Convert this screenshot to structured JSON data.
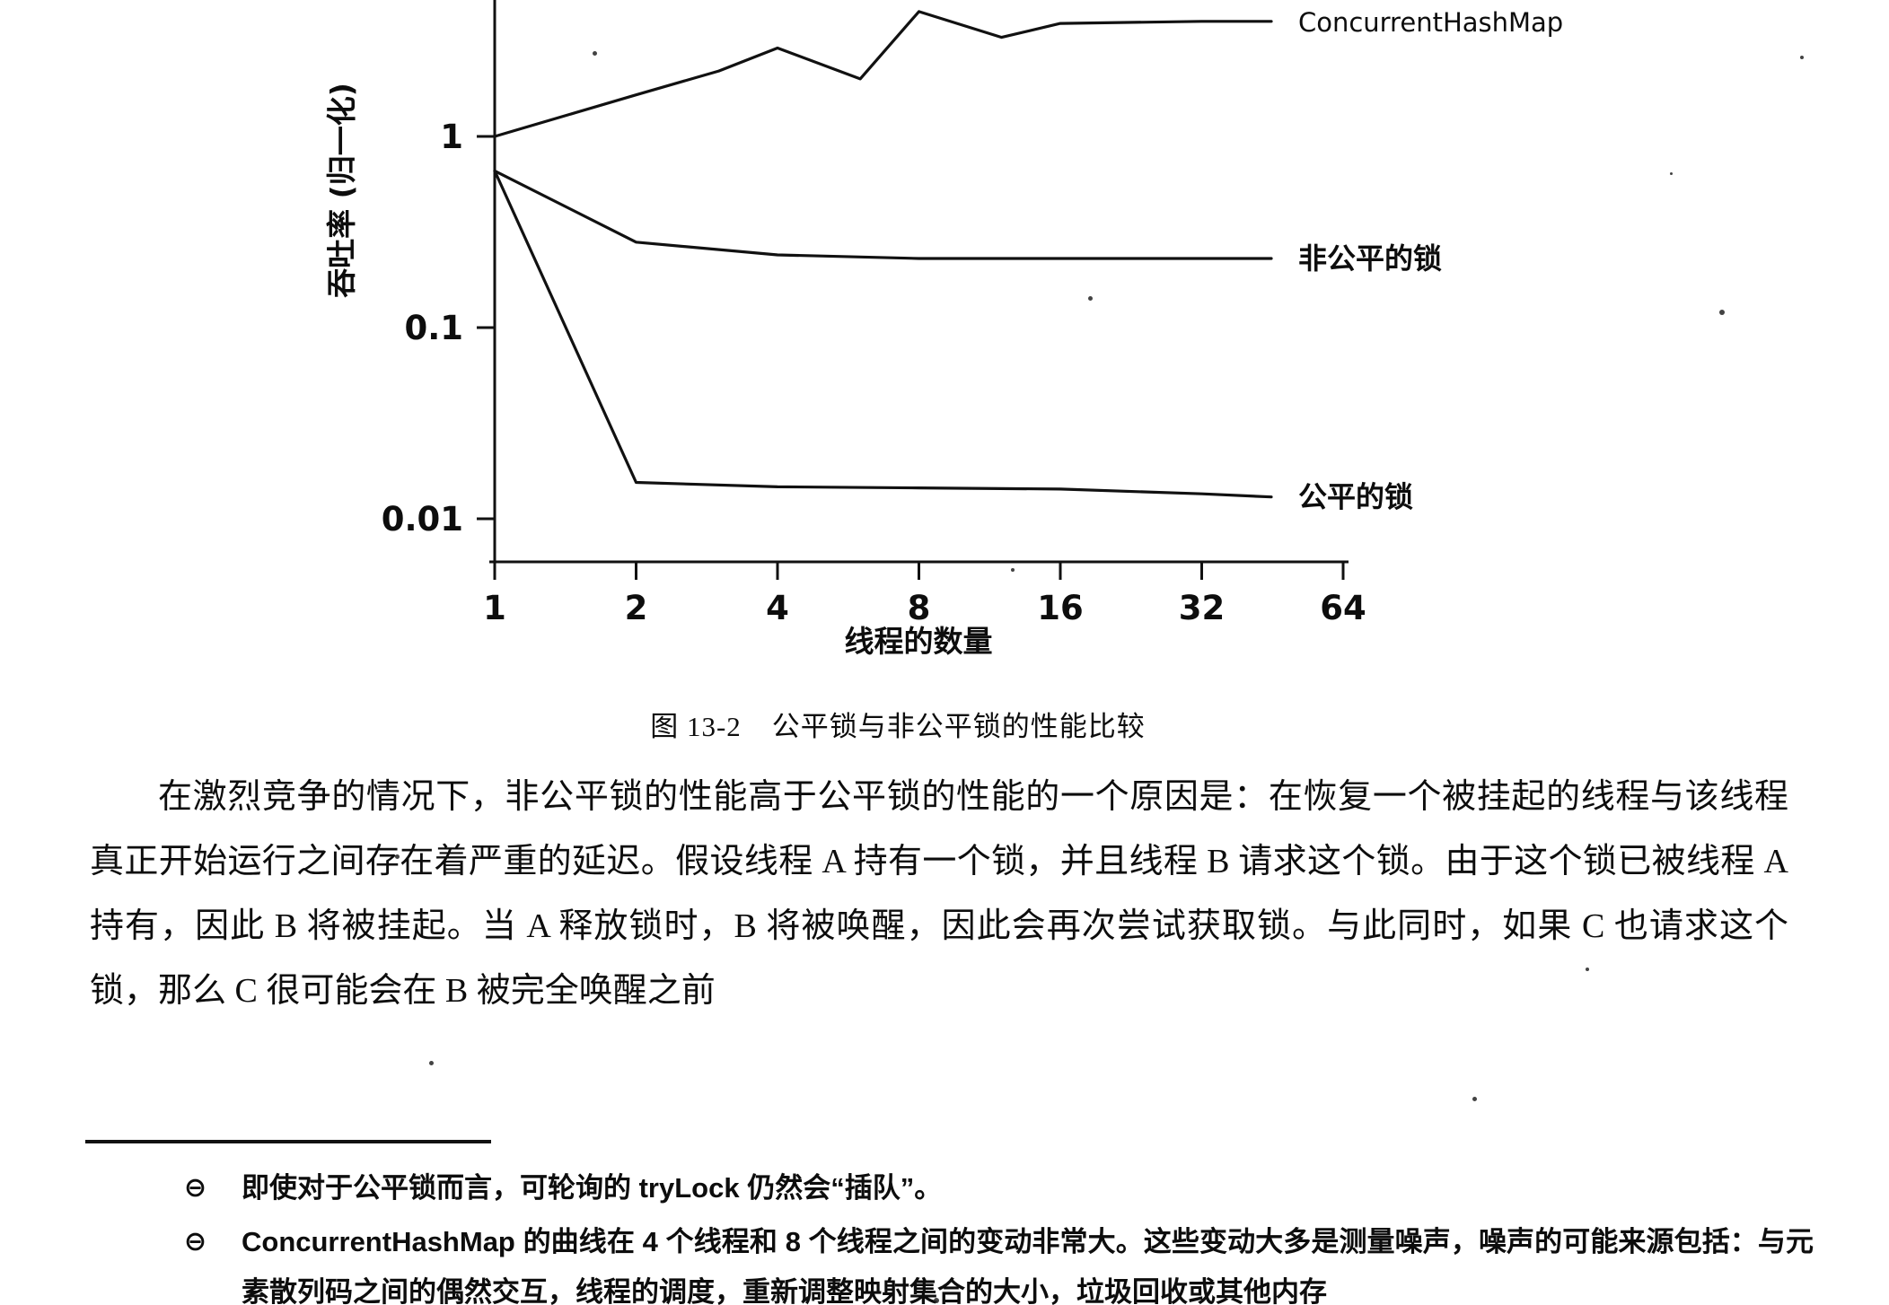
{
  "figure": {
    "caption_label": "图 13-2",
    "caption_title": "公平锁与非公平锁的性能比较"
  },
  "body": {
    "paragraph": "在激烈竞争的情况下，非公平锁的性能高于公平锁的性能的一个原因是：在恢复一个被挂起的线程与该线程真正开始运行之间存在着严重的延迟。假设线程 A 持有一个锁，并且线程 B 请求这个锁。由于这个锁已被线程 A 持有，因此 B 将被挂起。当 A 释放锁时，B 将被唤醒，因此会再次尝试获取锁。与此同时，如果 C 也请求这个锁，那么 C 很可能会在 B 被完全唤醒之前"
  },
  "chart_data": {
    "type": "line",
    "x_scale": "log2",
    "y_scale": "log10",
    "xlabel": "线程的数量",
    "ylabel": "吞吐率 (归一化)",
    "x_ticks": [
      1,
      2,
      4,
      8,
      16,
      32,
      64
    ],
    "y_ticks": [
      1,
      0.1,
      0.01
    ],
    "xlim": [
      1,
      64
    ],
    "ylim": [
      0.008,
      5
    ],
    "grid": false,
    "legend_position": "right-of-line-labels",
    "series": [
      {
        "name": "ConcurrentHashMap",
        "points": [
          [
            1,
            1.0
          ],
          [
            2,
            1.65
          ],
          [
            3,
            2.2
          ],
          [
            4,
            2.9
          ],
          [
            6,
            2.0
          ],
          [
            8,
            4.5
          ],
          [
            12,
            3.3
          ],
          [
            16,
            3.9
          ],
          [
            32,
            4.0
          ],
          [
            45,
            4.0
          ]
        ]
      },
      {
        "name": "非公平的锁",
        "points": [
          [
            1,
            0.66
          ],
          [
            2,
            0.28
          ],
          [
            4,
            0.24
          ],
          [
            8,
            0.23
          ],
          [
            16,
            0.23
          ],
          [
            32,
            0.23
          ],
          [
            45,
            0.23
          ]
        ]
      },
      {
        "name": "公平的锁",
        "points": [
          [
            1,
            0.66
          ],
          [
            2,
            0.0155
          ],
          [
            4,
            0.0147
          ],
          [
            8,
            0.0145
          ],
          [
            16,
            0.0143
          ],
          [
            32,
            0.0135
          ],
          [
            45,
            0.013
          ]
        ]
      }
    ]
  },
  "footnotes": [
    {
      "marker": "⊖",
      "text": "即使对于公平锁而言，可轮询的 tryLock 仍然会“插队”。"
    },
    {
      "marker": "⊖",
      "text": "ConcurrentHashMap 的曲线在 4 个线程和 8 个线程之间的变动非常大。这些变动大多是测量噪声，噪声的可能来源包括：与元素散列码之间的偶然交互，线程的调度，重新调整映射集合的大小，垃圾回收或其他内存"
    }
  ]
}
